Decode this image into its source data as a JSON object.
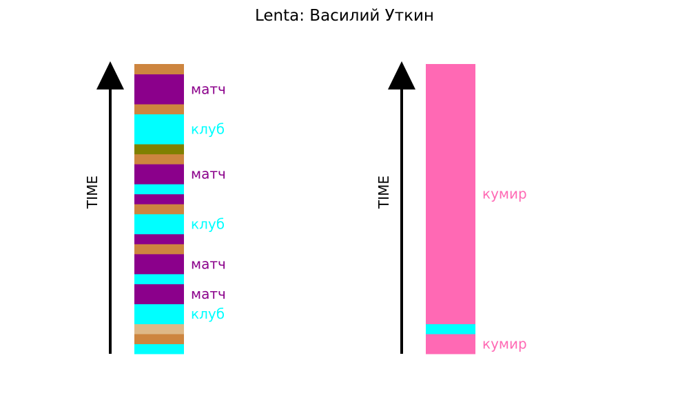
{
  "title": "Lenta: Василий Уткин",
  "chart_data": {
    "type": "bar",
    "title": "Lenta: Василий Уткин",
    "panels": [
      {
        "axis_label": "TIME",
        "segments": [
          {
            "color": "#00ffff",
            "size": 1
          },
          {
            "color": "#cd853f",
            "size": 1
          },
          {
            "color": "#deb887",
            "size": 1
          },
          {
            "color": "#00ffff",
            "size": 2,
            "label": "клуб"
          },
          {
            "color": "#8b008b",
            "size": 2,
            "label": "матч"
          },
          {
            "color": "#00ffff",
            "size": 1
          },
          {
            "color": "#8b008b",
            "size": 2,
            "label": "матч"
          },
          {
            "color": "#cd853f",
            "size": 1
          },
          {
            "color": "#8b008b",
            "size": 1
          },
          {
            "color": "#00ffff",
            "size": 2,
            "label": "клуб"
          },
          {
            "color": "#cd853f",
            "size": 1
          },
          {
            "color": "#8b008b",
            "size": 1
          },
          {
            "color": "#00ffff",
            "size": 1
          },
          {
            "color": "#8b008b",
            "size": 2,
            "label": "матч"
          },
          {
            "color": "#cd853f",
            "size": 1
          },
          {
            "color": "#808000",
            "size": 1
          },
          {
            "color": "#00ffff",
            "size": 3,
            "label": "клуб"
          },
          {
            "color": "#cd853f",
            "size": 1
          },
          {
            "color": "#8b008b",
            "size": 3,
            "label": "матч"
          },
          {
            "color": "#cd853f",
            "size": 1
          }
        ]
      },
      {
        "axis_label": "TIME",
        "segments": [
          {
            "color": "#ff69b4",
            "size": 2,
            "label": "кумир"
          },
          {
            "color": "#00ffff",
            "size": 1
          },
          {
            "color": "#ff69b4",
            "size": 26,
            "label": "кумир"
          }
        ]
      }
    ]
  }
}
